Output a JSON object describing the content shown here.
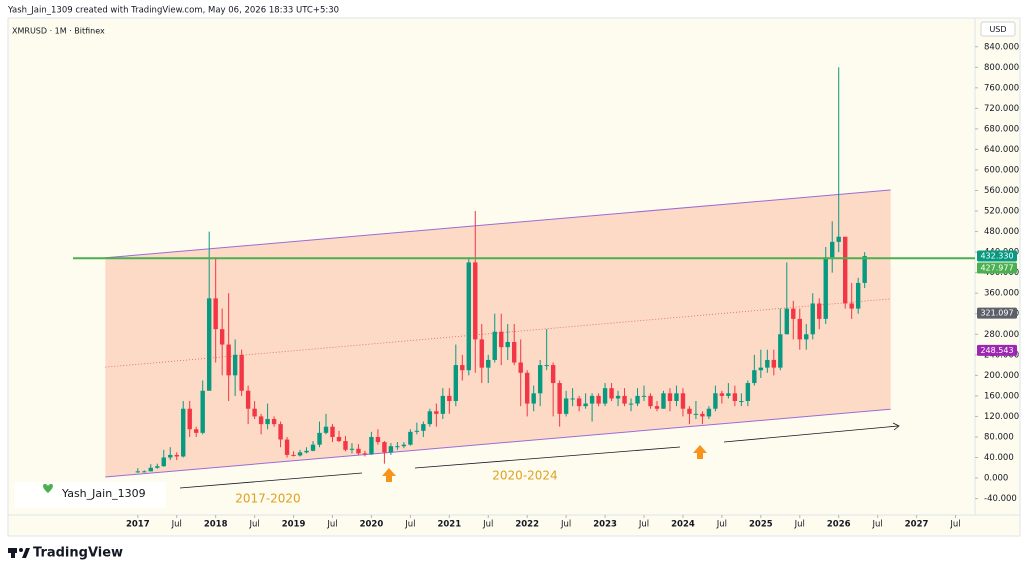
{
  "header": {
    "credit": "Yash_Jain_1309 created with TradingView.com, May 06, 2026 18:33 UTC+5:30",
    "symbol": "XMRUSD · 1M · Bitfinex",
    "currency": "USD"
  },
  "chart_data": {
    "type": "candlestick",
    "x": [
      "2017-01",
      "2017-02",
      "2017-03",
      "2017-04",
      "2017-05",
      "2017-06",
      "2017-07",
      "2017-08",
      "2017-09",
      "2017-10",
      "2017-11",
      "2017-12",
      "2018-01",
      "2018-02",
      "2018-03",
      "2018-04",
      "2018-05",
      "2018-06",
      "2018-07",
      "2018-08",
      "2018-09",
      "2018-10",
      "2018-11",
      "2018-12",
      "2019-01",
      "2019-02",
      "2019-03",
      "2019-04",
      "2019-05",
      "2019-06",
      "2019-07",
      "2019-08",
      "2019-09",
      "2019-10",
      "2019-11",
      "2019-12",
      "2020-01",
      "2020-02",
      "2020-03",
      "2020-04",
      "2020-05",
      "2020-06",
      "2020-07",
      "2020-08",
      "2020-09",
      "2020-10",
      "2020-11",
      "2020-12",
      "2021-01",
      "2021-02",
      "2021-03",
      "2021-04",
      "2021-05",
      "2021-06",
      "2021-07",
      "2021-08",
      "2021-09",
      "2021-10",
      "2021-11",
      "2021-12",
      "2022-01",
      "2022-02",
      "2022-03",
      "2022-04",
      "2022-05",
      "2022-06",
      "2022-07",
      "2022-08",
      "2022-09",
      "2022-10",
      "2022-11",
      "2022-12",
      "2023-01",
      "2023-02",
      "2023-03",
      "2023-04",
      "2023-05",
      "2023-06",
      "2023-07",
      "2023-08",
      "2023-09",
      "2023-10",
      "2023-11",
      "2023-12",
      "2024-01",
      "2024-02",
      "2024-03",
      "2024-04",
      "2024-05",
      "2024-06",
      "2024-07",
      "2024-08",
      "2024-09",
      "2024-10",
      "2024-11",
      "2024-12",
      "2025-01",
      "2025-02",
      "2025-03",
      "2025-04",
      "2025-05",
      "2025-06",
      "2025-07",
      "2025-08",
      "2025-09",
      "2025-10",
      "2025-11",
      "2025-12",
      "2026-01",
      "2026-02",
      "2026-03",
      "2026-04",
      "2026-05"
    ],
    "ohlc": [
      [
        13,
        19,
        10,
        13
      ],
      [
        13,
        15,
        11,
        13
      ],
      [
        13,
        27,
        13,
        20
      ],
      [
        20,
        28,
        18,
        23
      ],
      [
        23,
        55,
        22,
        40
      ],
      [
        40,
        60,
        35,
        45
      ],
      [
        45,
        50,
        35,
        42
      ],
      [
        42,
        150,
        40,
        135
      ],
      [
        135,
        150,
        80,
        95
      ],
      [
        95,
        100,
        80,
        88
      ],
      [
        88,
        190,
        85,
        170
      ],
      [
        170,
        480,
        170,
        350
      ],
      [
        350,
        430,
        225,
        290
      ],
      [
        290,
        330,
        200,
        260
      ],
      [
        260,
        360,
        150,
        200
      ],
      [
        200,
        270,
        160,
        240
      ],
      [
        240,
        250,
        160,
        170
      ],
      [
        170,
        180,
        105,
        135
      ],
      [
        135,
        150,
        115,
        120
      ],
      [
        120,
        125,
        85,
        105
      ],
      [
        105,
        145,
        95,
        115
      ],
      [
        115,
        120,
        100,
        105
      ],
      [
        105,
        110,
        60,
        75
      ],
      [
        75,
        80,
        40,
        45
      ],
      [
        45,
        52,
        42,
        44
      ],
      [
        44,
        55,
        42,
        50
      ],
      [
        50,
        60,
        48,
        53
      ],
      [
        53,
        72,
        52,
        65
      ],
      [
        65,
        110,
        60,
        88
      ],
      [
        88,
        125,
        85,
        100
      ],
      [
        100,
        105,
        70,
        80
      ],
      [
        80,
        92,
        70,
        72
      ],
      [
        72,
        82,
        52,
        55
      ],
      [
        55,
        68,
        48,
        57
      ],
      [
        57,
        66,
        45,
        48
      ],
      [
        48,
        53,
        42,
        46
      ],
      [
        46,
        90,
        45,
        80
      ],
      [
        80,
        95,
        65,
        70
      ],
      [
        70,
        72,
        28,
        50
      ],
      [
        50,
        68,
        45,
        62
      ],
      [
        62,
        70,
        55,
        62
      ],
      [
        62,
        70,
        58,
        65
      ],
      [
        65,
        95,
        63,
        90
      ],
      [
        90,
        108,
        85,
        92
      ],
      [
        92,
        110,
        80,
        105
      ],
      [
        105,
        135,
        100,
        130
      ],
      [
        130,
        145,
        100,
        125
      ],
      [
        125,
        175,
        115,
        160
      ],
      [
        160,
        175,
        125,
        150
      ],
      [
        150,
        260,
        140,
        220
      ],
      [
        220,
        240,
        190,
        210
      ],
      [
        210,
        430,
        200,
        420
      ],
      [
        420,
        520,
        205,
        270
      ],
      [
        270,
        300,
        185,
        215
      ],
      [
        215,
        240,
        185,
        230
      ],
      [
        230,
        320,
        225,
        285
      ],
      [
        285,
        320,
        220,
        255
      ],
      [
        255,
        300,
        230,
        265
      ],
      [
        265,
        300,
        220,
        225
      ],
      [
        225,
        270,
        140,
        205
      ],
      [
        205,
        210,
        120,
        145
      ],
      [
        145,
        180,
        130,
        165
      ],
      [
        165,
        230,
        140,
        220
      ],
      [
        220,
        290,
        210,
        220
      ],
      [
        220,
        225,
        120,
        185
      ],
      [
        185,
        190,
        100,
        125
      ],
      [
        125,
        170,
        120,
        155
      ],
      [
        155,
        175,
        140,
        155
      ],
      [
        155,
        160,
        130,
        140
      ],
      [
        140,
        165,
        135,
        145
      ],
      [
        145,
        165,
        110,
        160
      ],
      [
        160,
        165,
        140,
        145
      ],
      [
        145,
        185,
        140,
        175
      ],
      [
        175,
        185,
        150,
        155
      ],
      [
        155,
        170,
        140,
        160
      ],
      [
        160,
        175,
        140,
        145
      ],
      [
        145,
        155,
        130,
        145
      ],
      [
        145,
        175,
        140,
        160
      ],
      [
        160,
        180,
        150,
        160
      ],
      [
        160,
        165,
        135,
        140
      ],
      [
        140,
        150,
        130,
        135
      ],
      [
        135,
        170,
        135,
        165
      ],
      [
        165,
        175,
        130,
        150
      ],
      [
        150,
        180,
        140,
        165
      ],
      [
        165,
        175,
        120,
        135
      ],
      [
        135,
        140,
        105,
        125
      ],
      [
        125,
        150,
        115,
        125
      ],
      [
        125,
        130,
        105,
        120
      ],
      [
        120,
        140,
        115,
        135
      ],
      [
        135,
        180,
        130,
        165
      ],
      [
        165,
        170,
        145,
        160
      ],
      [
        160,
        185,
        155,
        165
      ],
      [
        165,
        180,
        140,
        150
      ],
      [
        150,
        165,
        140,
        150
      ],
      [
        150,
        190,
        140,
        185
      ],
      [
        185,
        240,
        180,
        210
      ],
      [
        210,
        250,
        195,
        215
      ],
      [
        215,
        250,
        205,
        230
      ],
      [
        230,
        250,
        200,
        215
      ],
      [
        215,
        330,
        210,
        280
      ],
      [
        280,
        420,
        280,
        330
      ],
      [
        330,
        345,
        270,
        310
      ],
      [
        310,
        330,
        250,
        270
      ],
      [
        270,
        300,
        250,
        280
      ],
      [
        280,
        360,
        270,
        340
      ],
      [
        340,
        350,
        290,
        310
      ],
      [
        310,
        450,
        300,
        430
      ],
      [
        430,
        500,
        400,
        460
      ],
      [
        460,
        800,
        440,
        470
      ],
      [
        470,
        470,
        330,
        340
      ],
      [
        340,
        380,
        310,
        330
      ],
      [
        330,
        390,
        320,
        380
      ],
      [
        380,
        440,
        370,
        432.33
      ]
    ],
    "up_color": "#089981",
    "down_color": "#f23645",
    "xlim": [
      "2015-05",
      "2027-10"
    ],
    "xticks": [
      {
        "value": "2017-01",
        "label": "2017"
      },
      {
        "value": "2017-07",
        "label": "Jul"
      },
      {
        "value": "2018-01",
        "label": "2018"
      },
      {
        "value": "2018-07",
        "label": "Jul"
      },
      {
        "value": "2019-01",
        "label": "2019"
      },
      {
        "value": "2019-07",
        "label": "Jul"
      },
      {
        "value": "2020-01",
        "label": "2020"
      },
      {
        "value": "2020-07",
        "label": "Jul"
      },
      {
        "value": "2021-01",
        "label": "2021"
      },
      {
        "value": "2021-07",
        "label": "Jul"
      },
      {
        "value": "2022-01",
        "label": "2022"
      },
      {
        "value": "2022-07",
        "label": "Jul"
      },
      {
        "value": "2023-01",
        "label": "2023"
      },
      {
        "value": "2023-07",
        "label": "Jul"
      },
      {
        "value": "2024-01",
        "label": "2024"
      },
      {
        "value": "2024-07",
        "label": "Jul"
      },
      {
        "value": "2025-01",
        "label": "2025"
      },
      {
        "value": "2025-07",
        "label": "Jul"
      },
      {
        "value": "2026-01",
        "label": "2026"
      },
      {
        "value": "2026-07",
        "label": "Jul"
      },
      {
        "value": "2027-01",
        "label": "2027"
      },
      {
        "value": "2027-07",
        "label": "Jul"
      }
    ],
    "ylim": [
      -72,
      896
    ],
    "yticks": [
      {
        "value": -40,
        "label": "-40.000"
      },
      {
        "value": 0,
        "label": "0.000"
      },
      {
        "value": 40,
        "label": "40.000"
      },
      {
        "value": 80,
        "label": "80.000"
      },
      {
        "value": 120,
        "label": "120.000"
      },
      {
        "value": 160,
        "label": "160.000"
      },
      {
        "value": 200,
        "label": "200.000"
      },
      {
        "value": 240,
        "label": "240.000"
      },
      {
        "value": 280,
        "label": "280.000"
      },
      {
        "value": 320,
        "label": "320.000"
      },
      {
        "value": 360,
        "label": "360.000"
      },
      {
        "value": 400,
        "label": "400.000"
      },
      {
        "value": 440,
        "label": "440.000"
      },
      {
        "value": 480,
        "label": "480.000"
      },
      {
        "value": 520,
        "label": "520.000"
      },
      {
        "value": 560,
        "label": "560.000"
      },
      {
        "value": 600,
        "label": "600.000"
      },
      {
        "value": 640,
        "label": "640.000"
      },
      {
        "value": 680,
        "label": "680.000"
      },
      {
        "value": 720,
        "label": "720.000"
      },
      {
        "value": 760,
        "label": "760.000"
      },
      {
        "value": 800,
        "label": "800.000"
      },
      {
        "value": 840,
        "label": "840.000"
      }
    ],
    "grid": false,
    "price_labels": [
      {
        "value": 432.33,
        "label": "432.330",
        "color": "#089981"
      },
      {
        "value": 427.977,
        "label": "427.977",
        "color": "#4caf50"
      },
      {
        "value": 321.097,
        "label": "321.097",
        "color": "#5d606b"
      },
      {
        "value": 248.543,
        "label": "248.543",
        "color": "#9c27b0"
      }
    ],
    "horizontal_line": {
      "value": 427.977,
      "color": "#4caf50"
    },
    "channel": {
      "x": [
        "2016-08",
        "2026-09"
      ],
      "upper": [
        429,
        561
      ],
      "lower": [
        2,
        134
      ],
      "middle": [
        216,
        349
      ],
      "line_color": "#9c6bd6",
      "fill": "rgba(255,140,100,0.30)"
    },
    "annotations": [
      "2017-2020",
      "2020-2024"
    ],
    "watermark": "Yash_Jain_1309"
  },
  "footer": {
    "brand": "TradingView"
  }
}
